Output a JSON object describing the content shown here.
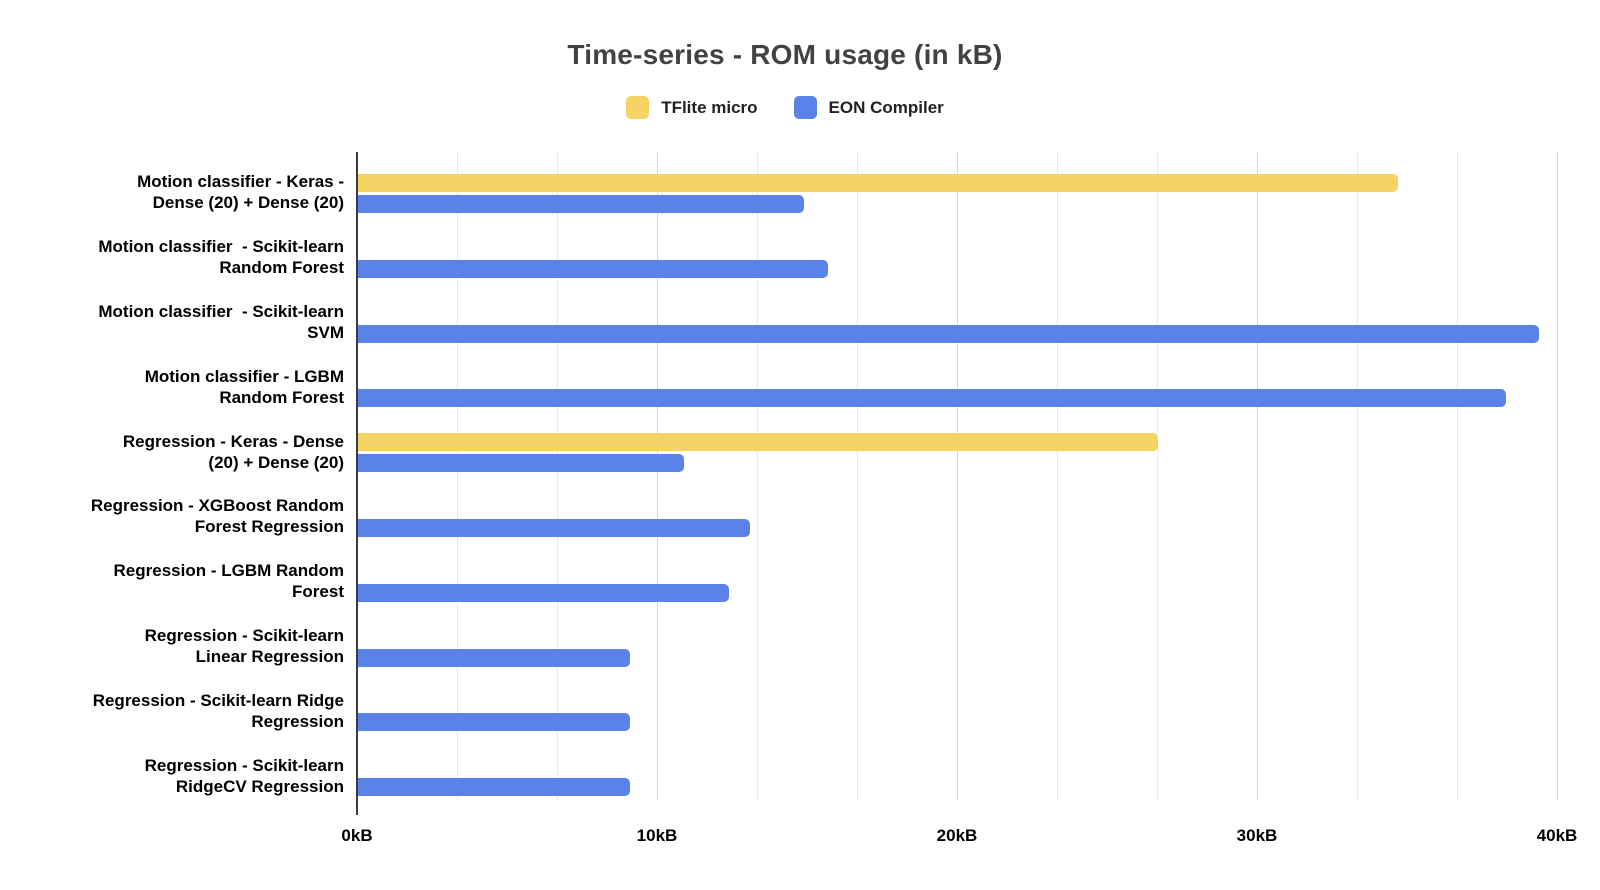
{
  "chart_data": {
    "type": "bar",
    "orientation": "horizontal",
    "title": "Time-series - ROM usage (in kB)",
    "unit": "kB",
    "categories": [
      "Motion classifier - Keras - Dense (20) + Dense (20)",
      "Motion classifier  - Scikit-learn Random Forest",
      "Motion classifier  - Scikit-learn SVM",
      "Motion classifier - LGBM Random Forest",
      "Regression - Keras - Dense (20) + Dense (20)",
      "Regression - XGBoost Random Forest Regression",
      "Regression - LGBM Random Forest",
      "Regression - Scikit-learn Linear Regression",
      "Regression - Scikit-learn Ridge Regression",
      "Regression - Scikit-learn RidgeCV Regression"
    ],
    "categories_display_lines": [
      [
        "Motion classifier - Keras -",
        "Dense (20) + Dense (20)"
      ],
      [
        "Motion classifier  - Scikit-learn",
        "Random Forest"
      ],
      [
        "Motion classifier  - Scikit-learn",
        "SVM"
      ],
      [
        "Motion classifier - LGBM",
        "Random Forest"
      ],
      [
        "Regression - Keras - Dense",
        "(20) + Dense (20)"
      ],
      [
        "Regression - XGBoost Random",
        "Forest Regression"
      ],
      [
        "Regression - LGBM Random",
        "Forest"
      ],
      [
        "Regression - Scikit-learn",
        "Linear Regression"
      ],
      [
        "Regression - Scikit-learn Ridge",
        "Regression"
      ],
      [
        "Regression - Scikit-learn",
        "RidgeCV Regression"
      ]
    ],
    "series": [
      {
        "name": "TFlite micro",
        "color": "#F5D364",
        "values": [
          34.7,
          0,
          0,
          0,
          26.7,
          0,
          0,
          0,
          0,
          0
        ]
      },
      {
        "name": "EON Compiler",
        "color": "#5B82E8",
        "values": [
          14.9,
          15.7,
          39.4,
          38.3,
          10.9,
          13.1,
          12.4,
          9.1,
          9.1,
          9.1
        ]
      }
    ],
    "x_ticks": [
      "0kB",
      "10kB",
      "20kB",
      "30kB",
      "40kB"
    ],
    "x_tick_values": [
      0,
      10,
      20,
      30,
      40
    ],
    "xlim": [
      0,
      40
    ],
    "minor_gridline_step": 3.3333,
    "major_gridline_step": 10,
    "legend_position": "top",
    "grid": true
  }
}
